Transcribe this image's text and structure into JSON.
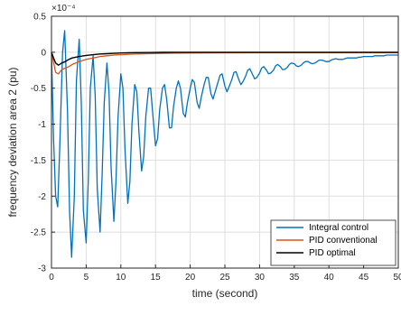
{
  "chart_data": {
    "type": "line",
    "title": "",
    "xlabel": "time (second)",
    "ylabel": "frequency deviation area 2 (pu)",
    "exponent_label": "×10⁻⁴",
    "y_scale": 0.0001,
    "xlim": [
      0,
      50
    ],
    "ylim": [
      -3,
      0.5
    ],
    "xticks": [
      0,
      5,
      10,
      15,
      20,
      25,
      30,
      35,
      40,
      45,
      50
    ],
    "xtick_labels": [
      "0",
      "5",
      "10",
      "15",
      "20",
      "25",
      "30",
      "35",
      "40",
      "45",
      "50"
    ],
    "yticks": [
      0.5,
      0,
      -0.5,
      -1,
      -1.5,
      -2,
      -2.5,
      -3
    ],
    "ytick_labels": [
      "0.5",
      "0",
      "-0.5",
      "-1",
      "-1.5",
      "-2",
      "-2.5",
      "-3"
    ],
    "grid": true,
    "legend_position": "bottom-right",
    "series": [
      {
        "name": "Integral control",
        "color": "#0072BD",
        "x": [
          0,
          0.3,
          0.6,
          0.9,
          1.2,
          1.6,
          1.9,
          2.3,
          2.6,
          2.9,
          3.3,
          3.6,
          4.0,
          4.3,
          4.6,
          5.0,
          5.3,
          5.6,
          6.0,
          6.3,
          6.6,
          7.0,
          7.3,
          7.6,
          8.0,
          8.3,
          8.6,
          9.0,
          9.3,
          9.6,
          10.0,
          10.3,
          10.6,
          11.0,
          11.3,
          11.6,
          12.0,
          12.3,
          12.6,
          13.0,
          13.3,
          13.6,
          14.0,
          14.3,
          14.6,
          15.0,
          15.3,
          15.6,
          16.0,
          16.3,
          16.6,
          17.0,
          17.3,
          17.6,
          18.0,
          18.3,
          18.6,
          19.0,
          19.3,
          19.6,
          20.0,
          20.3,
          20.6,
          21.0,
          21.3,
          21.6,
          22.0,
          22.3,
          22.6,
          23.0,
          23.3,
          23.6,
          24.0,
          24.3,
          24.6,
          25.0,
          25.3,
          25.6,
          26.0,
          26.3,
          26.6,
          27.0,
          27.3,
          27.6,
          28.0,
          28.3,
          28.6,
          29.0,
          29.3,
          29.6,
          30.0,
          30.3,
          30.6,
          31.0,
          31.3,
          31.6,
          32.0,
          32.3,
          32.6,
          33.0,
          33.3,
          33.6,
          34.0,
          34.3,
          34.6,
          35.0,
          35.3,
          35.6,
          36.0,
          36.3,
          36.6,
          37.0,
          37.3,
          37.6,
          38.0,
          38.3,
          38.6,
          39.0,
          39.3,
          39.6,
          40.0,
          40.3,
          40.6,
          41.0,
          41.3,
          41.6,
          42.0,
          42.3,
          42.6,
          43.0,
          43.3,
          43.6,
          44.0,
          44.3,
          44.6,
          45.0,
          45.3,
          45.6,
          46.0,
          46.3,
          46.6,
          47.0,
          47.3,
          47.6,
          48.0,
          48.3,
          48.6,
          49.0,
          49.3,
          49.6,
          50.0
        ],
        "y": [
          0,
          -1.2,
          -2.0,
          -2.15,
          -1.3,
          0.0,
          0.3,
          -0.8,
          -2.2,
          -2.85,
          -2.0,
          -0.4,
          0.18,
          -0.7,
          -2.2,
          -2.65,
          -1.8,
          -0.5,
          -0.05,
          -0.6,
          -1.9,
          -2.5,
          -1.7,
          -0.7,
          -0.15,
          -0.55,
          -1.6,
          -2.35,
          -1.8,
          -0.9,
          -0.3,
          -0.5,
          -1.35,
          -2.1,
          -1.8,
          -1.0,
          -0.45,
          -0.55,
          -1.1,
          -1.65,
          -1.45,
          -0.9,
          -0.5,
          -0.5,
          -0.85,
          -1.3,
          -1.2,
          -0.8,
          -0.5,
          -0.45,
          -0.65,
          -1.05,
          -1.05,
          -0.75,
          -0.5,
          -0.4,
          -0.5,
          -0.85,
          -0.9,
          -0.7,
          -0.5,
          -0.38,
          -0.42,
          -0.7,
          -0.78,
          -0.62,
          -0.45,
          -0.35,
          -0.35,
          -0.58,
          -0.65,
          -0.55,
          -0.42,
          -0.32,
          -0.3,
          -0.47,
          -0.55,
          -0.48,
          -0.38,
          -0.28,
          -0.27,
          -0.38,
          -0.45,
          -0.41,
          -0.33,
          -0.25,
          -0.23,
          -0.31,
          -0.37,
          -0.35,
          -0.29,
          -0.22,
          -0.2,
          -0.25,
          -0.3,
          -0.29,
          -0.25,
          -0.19,
          -0.17,
          -0.2,
          -0.24,
          -0.24,
          -0.21,
          -0.17,
          -0.15,
          -0.16,
          -0.19,
          -0.2,
          -0.18,
          -0.15,
          -0.13,
          -0.13,
          -0.15,
          -0.16,
          -0.15,
          -0.13,
          -0.11,
          -0.11,
          -0.12,
          -0.13,
          -0.13,
          -0.11,
          -0.1,
          -0.09,
          -0.1,
          -0.1,
          -0.1,
          -0.09,
          -0.08,
          -0.08,
          -0.08,
          -0.08,
          -0.08,
          -0.07,
          -0.07,
          -0.06,
          -0.06,
          -0.06,
          -0.06,
          -0.06,
          -0.05,
          -0.05,
          -0.05,
          -0.05,
          -0.05,
          -0.04,
          -0.04,
          -0.04,
          -0.04,
          -0.04,
          -0.04
        ]
      },
      {
        "name": "PID conventional",
        "color": "#D95319",
        "x": [
          0,
          0.3,
          0.6,
          1.0,
          1.5,
          2.0,
          2.5,
          3.0,
          4.0,
          5.0,
          6.0,
          7.0,
          8.0,
          9.0,
          10.0,
          12.0,
          14.0,
          16.0,
          18.0,
          20.0,
          25.0,
          30.0,
          35.0,
          40.0,
          45.0,
          50.0
        ],
        "y": [
          0,
          -0.14,
          -0.28,
          -0.3,
          -0.24,
          -0.22,
          -0.2,
          -0.17,
          -0.13,
          -0.1,
          -0.08,
          -0.06,
          -0.05,
          -0.04,
          -0.035,
          -0.025,
          -0.02,
          -0.015,
          -0.012,
          -0.01,
          -0.008,
          -0.006,
          -0.005,
          -0.005,
          -0.005,
          -0.005
        ]
      },
      {
        "name": "PID optimal",
        "color": "#000000",
        "x": [
          0,
          0.3,
          0.6,
          1.0,
          1.5,
          2.0,
          2.5,
          3.0,
          4.0,
          5.0,
          6.0,
          7.0,
          8.0,
          9.0,
          10.0,
          12.0,
          14.0,
          16.0,
          18.0,
          20.0,
          25.0,
          30.0,
          35.0,
          40.0,
          45.0,
          50.0
        ],
        "y": [
          0,
          -0.08,
          -0.15,
          -0.18,
          -0.15,
          -0.13,
          -0.1,
          -0.08,
          -0.06,
          -0.045,
          -0.035,
          -0.025,
          -0.02,
          -0.015,
          -0.01,
          -0.006,
          -0.004,
          -0.002,
          -0.001,
          0,
          0,
          0,
          0,
          0,
          0,
          0
        ]
      }
    ]
  }
}
